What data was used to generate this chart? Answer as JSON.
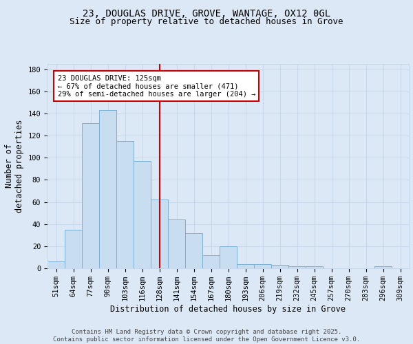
{
  "title_line1": "23, DOUGLAS DRIVE, GROVE, WANTAGE, OX12 0GL",
  "title_line2": "Size of property relative to detached houses in Grove",
  "xlabel": "Distribution of detached houses by size in Grove",
  "ylabel": "Number of detached properties",
  "categories": [
    "51sqm",
    "64sqm",
    "77sqm",
    "90sqm",
    "103sqm",
    "116sqm",
    "128sqm",
    "141sqm",
    "154sqm",
    "167sqm",
    "180sqm",
    "193sqm",
    "206sqm",
    "219sqm",
    "232sqm",
    "245sqm",
    "257sqm",
    "270sqm",
    "283sqm",
    "296sqm",
    "309sqm"
  ],
  "values": [
    6,
    35,
    131,
    143,
    115,
    97,
    62,
    44,
    32,
    12,
    20,
    4,
    4,
    3,
    2,
    2,
    0,
    0,
    0,
    2,
    0
  ],
  "bar_color": "#c8ddf0",
  "bar_edge_color": "#7aafd4",
  "grid_color": "#c8d8ec",
  "background_color": "#dce8f5",
  "vline_x": 6,
  "vline_color": "#cc0000",
  "annotation_text": "23 DOUGLAS DRIVE: 125sqm\n← 67% of detached houses are smaller (471)\n29% of semi-detached houses are larger (204) →",
  "annotation_box_color": "#ffffff",
  "annotation_box_edge": "#cc0000",
  "ylim": [
    0,
    185
  ],
  "yticks": [
    0,
    20,
    40,
    60,
    80,
    100,
    120,
    140,
    160,
    180
  ],
  "footer": "Contains HM Land Registry data © Crown copyright and database right 2025.\nContains public sector information licensed under the Open Government Licence v3.0.",
  "title_fontsize": 10,
  "subtitle_fontsize": 9,
  "axis_label_fontsize": 8.5,
  "tick_fontsize": 7.5,
  "annotation_fontsize": 7.5,
  "footer_fontsize": 6.5
}
